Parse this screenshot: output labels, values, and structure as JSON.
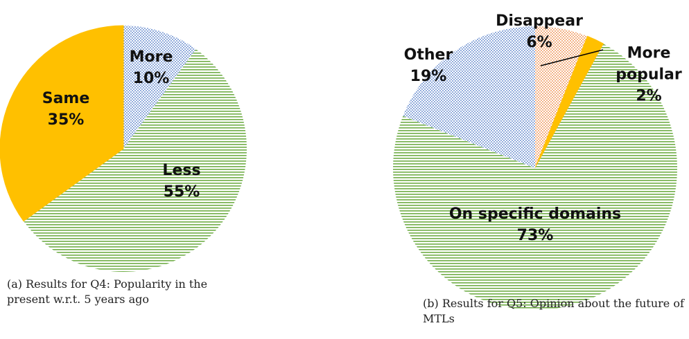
{
  "chart_data": [
    {
      "type": "pie",
      "categories": [
        "More",
        "Less",
        "Same"
      ],
      "values": [
        10,
        55,
        35
      ],
      "value_labels": [
        "10%",
        "55%",
        "35%"
      ],
      "colors": [
        "#4472c4",
        "#70ad47",
        "#ffc000"
      ],
      "patterns": [
        "dots",
        "stripes",
        "solid"
      ],
      "caption": "(a) Results for Q4: Popularity in the present w.r.t. 5 years ago"
    },
    {
      "type": "pie",
      "categories": [
        "Disappear",
        "More popular",
        "On specific domains",
        "Other"
      ],
      "values": [
        6,
        2,
        73,
        19
      ],
      "value_labels": [
        "6%",
        "2%",
        "73%",
        "19%"
      ],
      "colors": [
        "#ed7d31",
        "#ffc000",
        "#70ad47",
        "#4472c4"
      ],
      "patterns": [
        "dots",
        "solid",
        "stripes",
        "dots"
      ],
      "caption": "(b) Results for Q5: Opinion about the future of MTLs"
    }
  ]
}
